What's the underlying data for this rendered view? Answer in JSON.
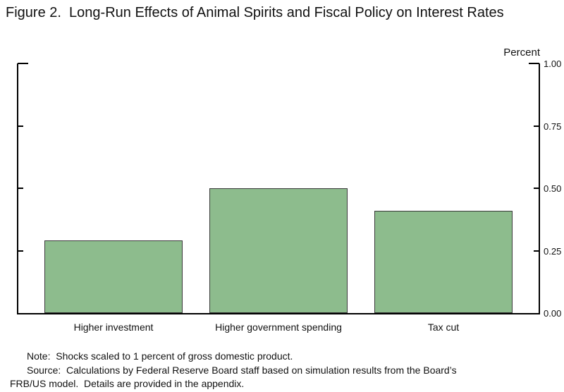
{
  "chart_data": {
    "type": "bar",
    "title": "Figure 2.  Long-Run Effects of Animal Spirits and Fiscal Policy on Interest Rates",
    "unit_label": "Percent",
    "categories": [
      "Higher investment",
      "Higher government spending",
      "Tax cut"
    ],
    "values": [
      0.29,
      0.5,
      0.41
    ],
    "xlabel": "",
    "ylabel": "Percent",
    "ylim": [
      0,
      1
    ],
    "y_ticks": [
      {
        "label": "1.00",
        "value": 1.0
      },
      {
        "label": "0.75",
        "value": 0.75
      },
      {
        "label": "0.50",
        "value": 0.5
      },
      {
        "label": "0.25",
        "value": 0.25
      },
      {
        "label": "0.00",
        "value": 0.0
      }
    ],
    "grid": false,
    "legend": "none",
    "bar_fill": "#8dbc8d",
    "bar_border": "#3a3a3a"
  },
  "notes": {
    "lines": [
      "Note:  Shocks scaled to 1 percent of gross domestic product.",
      "Source:  Calculations by Federal Reserve Board staff based on simulation results from the Board’s",
      "FRB/US model.  Details are provided in the appendix."
    ]
  }
}
